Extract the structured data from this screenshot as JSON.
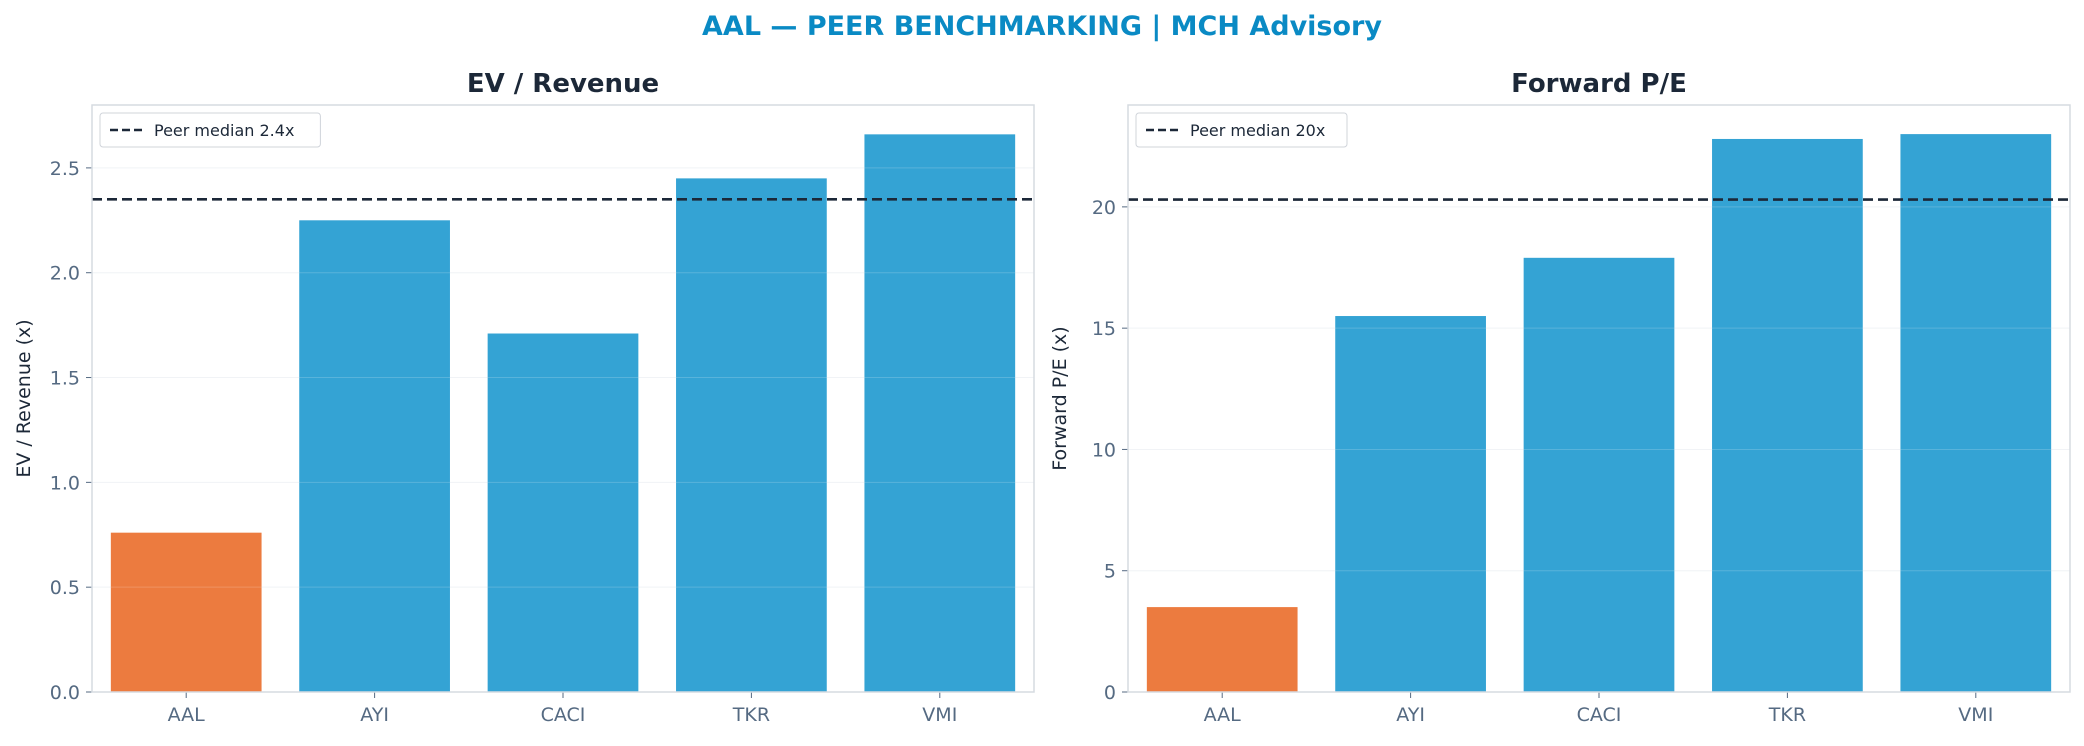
{
  "suptitle": "AAL — PEER BENCHMARKING | MCH Advisory",
  "colors": {
    "title": "#0a8ac4",
    "heading": "#1c2838",
    "axis_text": "#556a82",
    "focus_bar": "#ec7b3f",
    "peer_bar": "#34a3d4",
    "median_line": "#1c2838",
    "frame": "#d6dbe1",
    "grid": "#eef1f4"
  },
  "chart_data": [
    {
      "type": "bar",
      "title": "EV / Revenue",
      "xlabel": "",
      "ylabel": "EV / Revenue (x)",
      "categories": [
        "AAL",
        "AYI",
        "CACI",
        "TKR",
        "VMI"
      ],
      "values": [
        0.76,
        2.25,
        1.71,
        2.45,
        2.66
      ],
      "highlight": "AAL",
      "ylim": [
        0,
        2.8
      ],
      "yticks": [
        0.0,
        0.5,
        1.0,
        1.5,
        2.0,
        2.5
      ],
      "ytick_labels": [
        "0.0",
        "0.5",
        "1.0",
        "1.5",
        "2.0",
        "2.5"
      ],
      "reference_line": {
        "value": 2.35,
        "label": "Peer median 2.4x",
        "style": "dashed"
      },
      "grid": true,
      "legend": "top-left"
    },
    {
      "type": "bar",
      "title": "Forward P/E",
      "xlabel": "",
      "ylabel": "Forward P/E (x)",
      "categories": [
        "AAL",
        "AYI",
        "CACI",
        "TKR",
        "VMI"
      ],
      "values": [
        3.5,
        15.5,
        17.9,
        22.8,
        23.0
      ],
      "highlight": "AAL",
      "ylim": [
        0,
        24.2
      ],
      "yticks": [
        0,
        5,
        10,
        15,
        20
      ],
      "ytick_labels": [
        "0",
        "5",
        "10",
        "15",
        "20"
      ],
      "reference_line": {
        "value": 20.3,
        "label": "Peer median 20x",
        "style": "dashed"
      },
      "grid": true,
      "legend": "top-left"
    }
  ]
}
